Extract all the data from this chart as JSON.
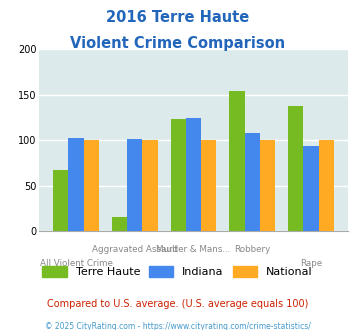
{
  "title_line1": "2016 Terre Haute",
  "title_line2": "Violent Crime Comparison",
  "terre_haute": [
    67,
    15,
    123,
    154,
    138
  ],
  "indiana": [
    102,
    101,
    125,
    108,
    94
  ],
  "national": [
    100,
    100,
    100,
    100,
    100
  ],
  "color_th": "#77bb22",
  "color_indiana": "#4488ee",
  "color_national": "#ffaa22",
  "ylim": [
    0,
    200
  ],
  "yticks": [
    0,
    50,
    100,
    150,
    200
  ],
  "legend_labels": [
    "Terre Haute",
    "Indiana",
    "National"
  ],
  "top_labels": [
    "",
    "Aggravated Assault",
    "Murder & Mans...",
    "Robbery",
    ""
  ],
  "bot_labels": [
    "All Violent Crime",
    "",
    "",
    "",
    "Rape"
  ],
  "footnote1": "Compared to U.S. average. (U.S. average equals 100)",
  "footnote2": "© 2025 CityRating.com - https://www.cityrating.com/crime-statistics/",
  "title_color": "#2266bb",
  "footnote1_color": "#cc2200",
  "footnote2_color": "#4499cc",
  "bg_color": "#ddeaec",
  "bar_width": 0.26
}
